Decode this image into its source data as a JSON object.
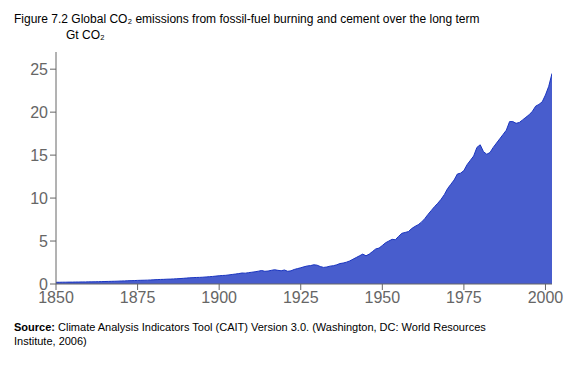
{
  "chart_data": {
    "type": "area",
    "title": "Figure 7.2  Global CO₂ emissions from fossil-fuel burning and cement over the long term",
    "ylabel": "Gt CO₂",
    "annotations": [
      "Source:",
      "Climate Analysis Indicators Tool (CAIT) Version 3.0. (Washington, DC: World Resources\nInstitute, 2006)"
    ],
    "color": "#1a35c0",
    "grid": false,
    "xlim": [
      1850,
      2002
    ],
    "ylim": [
      0,
      27
    ],
    "xticks": [
      1850,
      1875,
      1900,
      1925,
      1950,
      1975,
      2000
    ],
    "yticks": [
      0,
      5,
      10,
      15,
      20,
      25
    ],
    "x": [
      1850,
      1851,
      1852,
      1853,
      1854,
      1855,
      1856,
      1857,
      1858,
      1859,
      1860,
      1861,
      1862,
      1863,
      1864,
      1865,
      1866,
      1867,
      1868,
      1869,
      1870,
      1871,
      1872,
      1873,
      1874,
      1875,
      1876,
      1877,
      1878,
      1879,
      1880,
      1881,
      1882,
      1883,
      1884,
      1885,
      1886,
      1887,
      1888,
      1889,
      1890,
      1891,
      1892,
      1893,
      1894,
      1895,
      1896,
      1897,
      1898,
      1899,
      1900,
      1901,
      1902,
      1903,
      1904,
      1905,
      1906,
      1907,
      1908,
      1909,
      1910,
      1911,
      1912,
      1913,
      1914,
      1915,
      1916,
      1917,
      1918,
      1919,
      1920,
      1921,
      1922,
      1923,
      1924,
      1925,
      1926,
      1927,
      1928,
      1929,
      1930,
      1931,
      1932,
      1933,
      1934,
      1935,
      1936,
      1937,
      1938,
      1939,
      1940,
      1941,
      1942,
      1943,
      1944,
      1945,
      1946,
      1947,
      1948,
      1949,
      1950,
      1951,
      1952,
      1953,
      1954,
      1955,
      1956,
      1957,
      1958,
      1959,
      1960,
      1961,
      1962,
      1963,
      1964,
      1965,
      1966,
      1967,
      1968,
      1969,
      1970,
      1971,
      1972,
      1973,
      1974,
      1975,
      1976,
      1977,
      1978,
      1979,
      1980,
      1981,
      1982,
      1983,
      1984,
      1985,
      1986,
      1987,
      1988,
      1989,
      1990,
      1991,
      1992,
      1993,
      1994,
      1995,
      1996,
      1997,
      1998,
      1999,
      2000,
      2001,
      2002
    ],
    "values": [
      0.2,
      0.2,
      0.21,
      0.21,
      0.22,
      0.22,
      0.23,
      0.23,
      0.24,
      0.24,
      0.25,
      0.25,
      0.26,
      0.27,
      0.28,
      0.29,
      0.3,
      0.31,
      0.32,
      0.33,
      0.35,
      0.36,
      0.38,
      0.39,
      0.4,
      0.42,
      0.43,
      0.44,
      0.45,
      0.47,
      0.49,
      0.51,
      0.53,
      0.54,
      0.56,
      0.57,
      0.59,
      0.61,
      0.63,
      0.66,
      0.69,
      0.72,
      0.74,
      0.76,
      0.77,
      0.79,
      0.82,
      0.85,
      0.88,
      0.92,
      0.96,
      0.99,
      1.01,
      1.06,
      1.11,
      1.16,
      1.21,
      1.28,
      1.26,
      1.32,
      1.37,
      1.42,
      1.49,
      1.57,
      1.48,
      1.51,
      1.59,
      1.66,
      1.59,
      1.54,
      1.63,
      1.48,
      1.53,
      1.69,
      1.79,
      1.89,
      2.0,
      2.1,
      2.14,
      2.24,
      2.19,
      2.03,
      1.93,
      1.98,
      2.08,
      2.13,
      2.23,
      2.38,
      2.44,
      2.54,
      2.68,
      2.88,
      3.08,
      3.28,
      3.48,
      3.28,
      3.48,
      3.78,
      4.08,
      4.18,
      4.48,
      4.8,
      5.0,
      5.2,
      5.15,
      5.55,
      5.9,
      6.0,
      6.1,
      6.45,
      6.7,
      6.9,
      7.2,
      7.6,
      8.1,
      8.55,
      9.0,
      9.4,
      9.85,
      10.4,
      11.1,
      11.6,
      12.1,
      12.8,
      12.9,
      13.2,
      13.9,
      14.4,
      14.9,
      15.9,
      16.2,
      15.4,
      15.1,
      15.3,
      15.9,
      16.4,
      16.9,
      17.4,
      17.9,
      18.9,
      18.9,
      18.7,
      18.8,
      19.1,
      19.4,
      19.7,
      20.1,
      20.7,
      20.9,
      21.2,
      22.0,
      23.0,
      24.5
    ]
  }
}
